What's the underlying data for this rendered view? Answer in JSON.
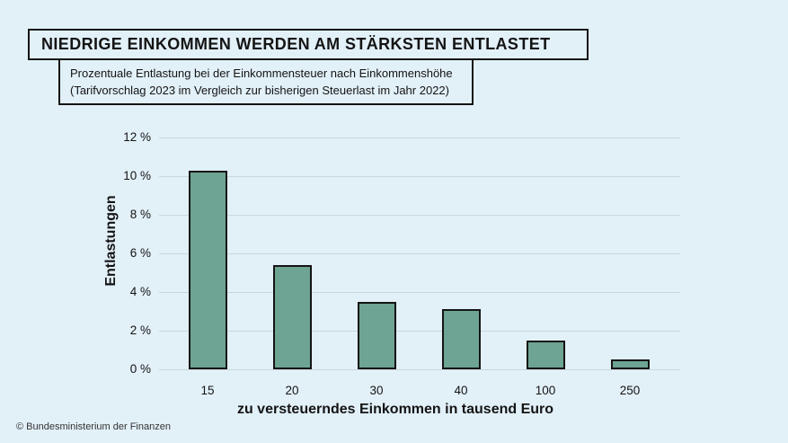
{
  "header": {
    "title": "NIEDRIGE EINKOMMEN WERDEN AM STÄRKSTEN ENTLASTET",
    "subtitle_line1": "Prozentuale Entlastung bei der Einkommensteuer nach Einkommenshöhe",
    "subtitle_line2": "(Tarifvorschlag 2023 im Vergleich zur bisherigen Steuerlast im Jahr 2022)"
  },
  "chart_data": {
    "type": "bar",
    "categories": [
      "15",
      "20",
      "30",
      "40",
      "100",
      "250"
    ],
    "values": [
      10.3,
      5.4,
      3.5,
      3.1,
      1.5,
      0.5
    ],
    "xlabel": "zu versteuerndes Einkommen in tausend Euro",
    "ylabel": "Entlastungen",
    "ylim": [
      0,
      12
    ],
    "ytick_labels": [
      "0 %",
      "2 %",
      "4 %",
      "6 %",
      "8 %",
      "10 %",
      "12 %"
    ],
    "grid": true,
    "legend": "none",
    "colors": {
      "background": "#e2f0f8",
      "bar_fill": "#6da493",
      "bar_border": "#141414",
      "gridline": "#c9d6dd",
      "text": "#141414"
    }
  },
  "footer": {
    "credit": "© Bundesministerium der Finanzen"
  }
}
